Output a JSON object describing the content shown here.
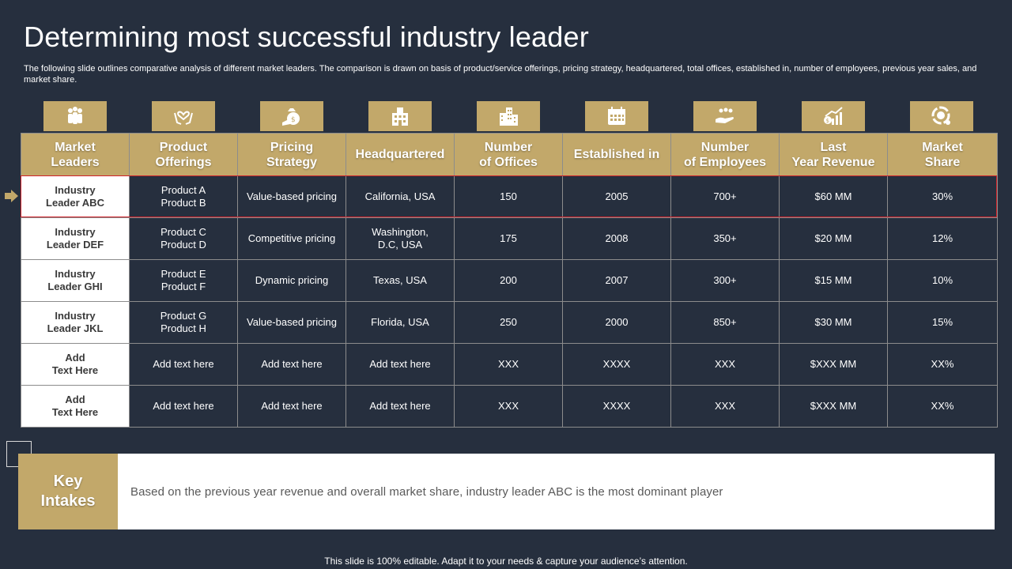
{
  "title": "Determining most successful industry leader",
  "subtitle": "The following slide outlines comparative analysis of different market leaders. The comparison is drawn on basis of product/service offerings, pricing strategy, headquartered, total offices, established in, number of employees, previous year sales, and market share.",
  "colors": {
    "background": "#262f3e",
    "accent_gold": "#c2a86a",
    "highlight_red": "#d0222a"
  },
  "icons": [
    "people-icon",
    "handshake-heart-icon",
    "money-bag-icon",
    "building-icon",
    "office-buildings-icon",
    "calendar-icon",
    "hand-people-icon",
    "revenue-chart-icon",
    "pie-chart-icon"
  ],
  "table": {
    "headers": [
      "Market\nLeaders",
      "Product\nOfferings",
      "Pricing\nStrategy",
      "Headquartered",
      "Number\nof Offices",
      "Established in",
      "Number\nof Employees",
      "Last\nYear Revenue",
      "Market\nShare"
    ],
    "rows": [
      [
        "Industry\nLeader ABC",
        "Product A\nProduct B",
        "Value-based  pricing",
        "California,  USA",
        "150",
        "2005",
        "700+",
        "$60  MM",
        "30%"
      ],
      [
        "Industry\nLeader DEF",
        "Product C\nProduct D",
        "Competitive  pricing",
        "Washington,\nD.C, USA",
        "175",
        "2008",
        "350+",
        "$20  MM",
        "12%"
      ],
      [
        "Industry\nLeader GHI",
        "Product E\nProduct F",
        "Dynamic pricing",
        "Texas, USA",
        "200",
        "2007",
        "300+",
        "$15  MM",
        "10%"
      ],
      [
        "Industry\nLeader JKL",
        "Product G\nProduct H",
        "Value-based  pricing",
        "Florida,  USA",
        "250",
        "2000",
        "850+",
        "$30  MM",
        "15%"
      ],
      [
        "Add\nText Here",
        "Add text here",
        "Add text here",
        "Add text here",
        "XXX",
        "XXXX",
        "XXX",
        "$XXX  MM",
        "XX%"
      ],
      [
        "Add\nText Here",
        "Add text here",
        "Add text here",
        "Add text here",
        "XXX",
        "XXXX",
        "XXX",
        "$XXX  MM",
        "XX%"
      ]
    ]
  },
  "key_intakes": {
    "label": "Key\nIntakes",
    "text": "Based on the previous year revenue and overall market share, industry leader ABC is the most dominant player"
  },
  "footer": "This slide is 100% editable. Adapt it to your needs & capture your audience’s attention."
}
